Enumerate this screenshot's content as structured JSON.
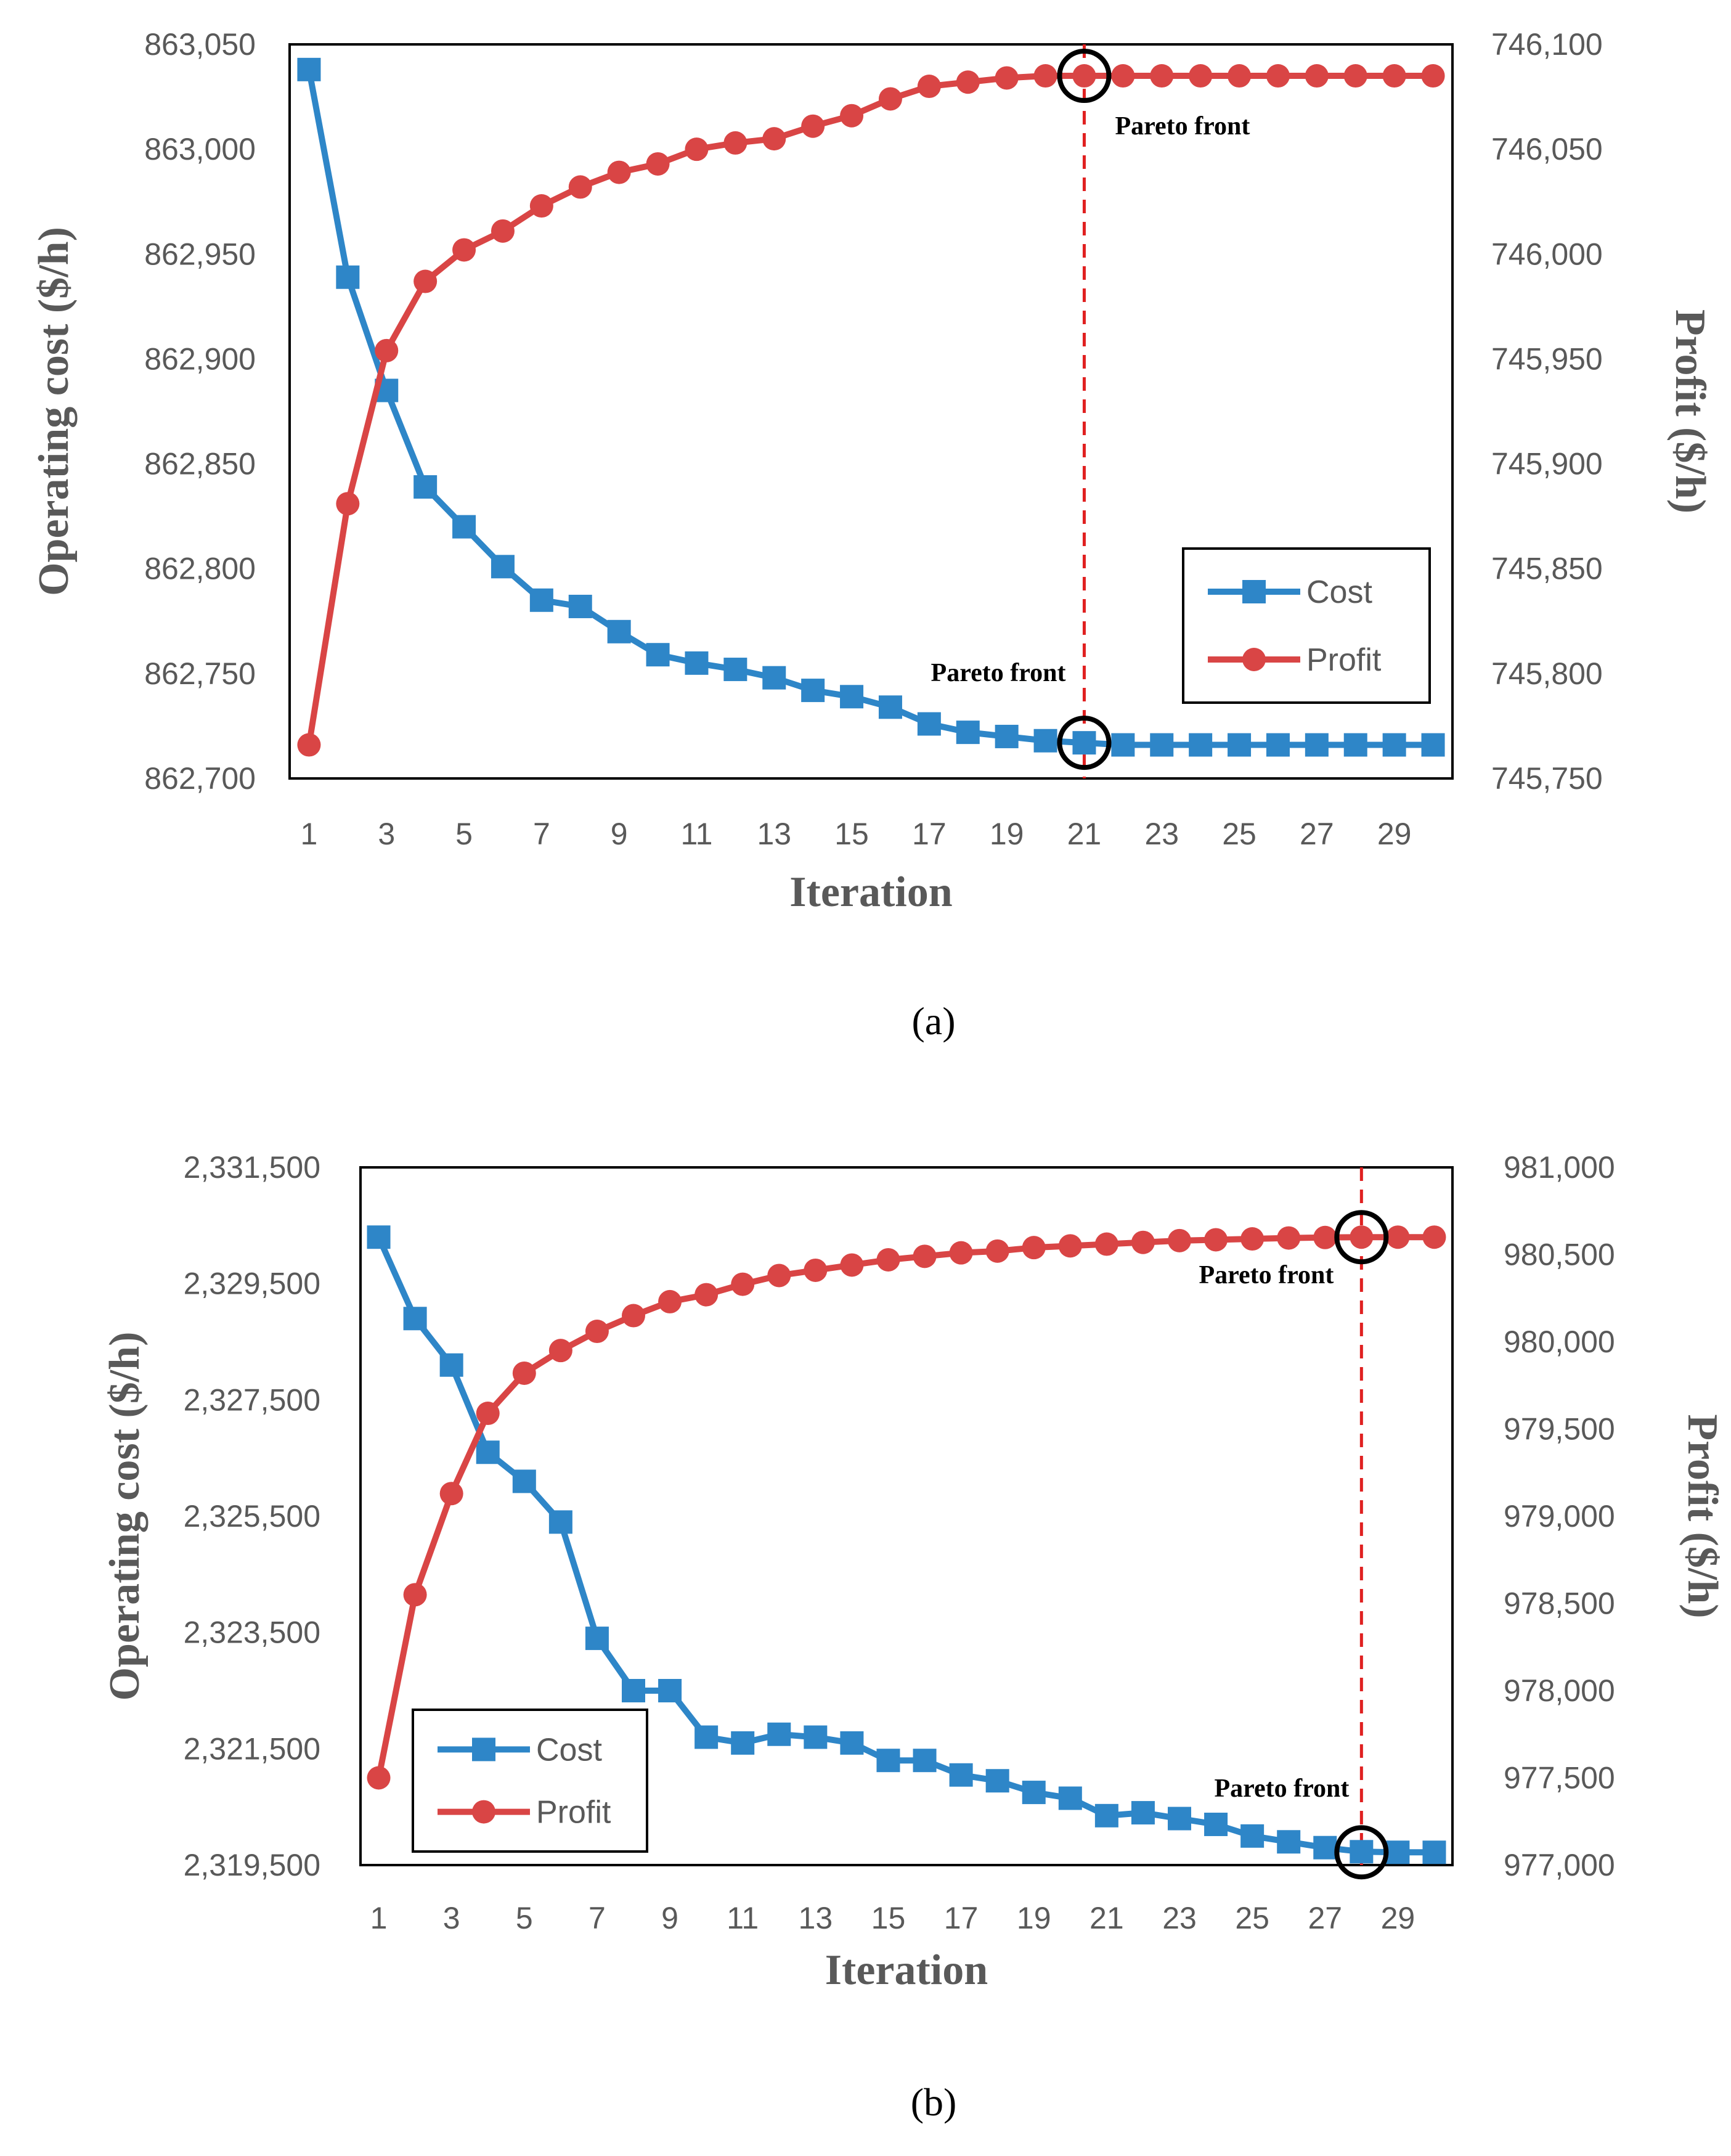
{
  "colors": {
    "cost": "#2E86C8",
    "profit": "#D94545",
    "frame": "#000000",
    "tick": "#595959",
    "pareto_line": "#E02020"
  },
  "chart_data": [
    {
      "id": "a",
      "type": "line",
      "caption": "(a)",
      "xlabel": "Iteration",
      "ylabel_left": "Operating cost ($/h)",
      "ylabel_right": "Profit ($/h)",
      "x": [
        1,
        2,
        3,
        4,
        5,
        6,
        7,
        8,
        9,
        10,
        11,
        12,
        13,
        14,
        15,
        16,
        17,
        18,
        19,
        20,
        21,
        22,
        23,
        24,
        25,
        26,
        27,
        28,
        29,
        30
      ],
      "x_tick_labels": [
        "1",
        "3",
        "5",
        "7",
        "9",
        "11",
        "13",
        "15",
        "17",
        "19",
        "21",
        "23",
        "25",
        "27",
        "29"
      ],
      "ylim_left": [
        862700,
        863050
      ],
      "ylim_right": [
        745750,
        746100
      ],
      "y_ticks_left": [
        "862,700",
        "862,750",
        "862,800",
        "862,850",
        "862,900",
        "862,950",
        "863,000",
        "863,050"
      ],
      "y_ticks_right": [
        "745,750",
        "745,800",
        "745,850",
        "745,900",
        "745,950",
        "746,000",
        "746,050",
        "746,100"
      ],
      "series": [
        {
          "name": "Cost",
          "axis": "left",
          "marker": "square",
          "values": [
            863038,
            862939,
            862885,
            862839,
            862820,
            862801,
            862785,
            862782,
            862770,
            862759,
            862755,
            862752,
            862748,
            862742,
            862739,
            862734,
            862726,
            862722,
            862720,
            862718,
            862717,
            862716,
            862716,
            862716,
            862716,
            862716,
            862716,
            862716,
            862716,
            862716
          ]
        },
        {
          "name": "Profit",
          "axis": "right",
          "marker": "circle",
          "values": [
            745766,
            745881,
            745954,
            745987,
            746002,
            746011,
            746023,
            746032,
            746039,
            746043,
            746050,
            746053,
            746055,
            746061,
            746066,
            746074,
            746080,
            746082,
            746084,
            746085,
            746085,
            746085,
            746085,
            746085,
            746085,
            746085,
            746085,
            746085,
            746085,
            746085
          ]
        }
      ],
      "pareto_x": 21,
      "annotations": [
        {
          "text": "Pareto front",
          "x": 21,
          "axis": "right",
          "y": 746085,
          "place": "below-right"
        },
        {
          "text": "Pareto front",
          "x": 21,
          "axis": "left",
          "y": 862717,
          "place": "above-left"
        }
      ],
      "legend": {
        "entries": [
          "Cost",
          "Profit"
        ],
        "position": "right-center"
      }
    },
    {
      "id": "b",
      "type": "line",
      "caption": "(b)",
      "xlabel": "Iteration",
      "ylabel_left": "Operating cost ($/h)",
      "ylabel_right": "Profit ($/h)",
      "x": [
        1,
        2,
        3,
        4,
        5,
        6,
        7,
        8,
        9,
        10,
        11,
        12,
        13,
        14,
        15,
        16,
        17,
        18,
        19,
        20,
        21,
        22,
        23,
        24,
        25,
        26,
        27,
        28,
        29,
        30
      ],
      "x_tick_labels": [
        "1",
        "3",
        "5",
        "7",
        "9",
        "11",
        "13",
        "15",
        "17",
        "19",
        "21",
        "23",
        "25",
        "27",
        "29"
      ],
      "ylim_left": [
        2319500,
        2331500
      ],
      "ylim_right": [
        977000,
        981000
      ],
      "y_ticks_left": [
        "2,319,500",
        "2,321,500",
        "2,323,500",
        "2,325,500",
        "2,327,500",
        "2,329,500",
        "2,331,500"
      ],
      "y_ticks_right": [
        "977,000",
        "977,500",
        "978,000",
        "978,500",
        "979,000",
        "979,500",
        "980,000",
        "980,500",
        "981,000"
      ],
      "series": [
        {
          "name": "Cost",
          "axis": "left",
          "marker": "square",
          "values": [
            2330300,
            2328900,
            2328100,
            2326600,
            2326100,
            2325400,
            2323400,
            2322500,
            2322500,
            2321700,
            2321600,
            2321750,
            2321700,
            2321600,
            2321300,
            2321300,
            2321050,
            2320950,
            2320750,
            2320650,
            2320350,
            2320400,
            2320300,
            2320200,
            2320000,
            2319900,
            2319800,
            2319730,
            2319720,
            2319720
          ]
        },
        {
          "name": "Profit",
          "axis": "right",
          "marker": "circle",
          "values": [
            977500,
            978550,
            979130,
            979590,
            979820,
            979950,
            980060,
            980150,
            980230,
            980270,
            980330,
            980380,
            980410,
            980440,
            980470,
            980490,
            980510,
            980520,
            980540,
            980550,
            980560,
            980570,
            980580,
            980585,
            980590,
            980595,
            980598,
            980600,
            980600,
            980600
          ]
        }
      ],
      "pareto_x": 28,
      "annotations": [
        {
          "text": "Pareto front",
          "x": 28,
          "axis": "right",
          "y": 980600,
          "place": "below-left"
        },
        {
          "text": "Pareto front",
          "x": 28,
          "axis": "left",
          "y": 2319720,
          "place": "above-left"
        }
      ],
      "legend": {
        "entries": [
          "Cost",
          "Profit"
        ],
        "position": "bottom-left"
      }
    }
  ]
}
